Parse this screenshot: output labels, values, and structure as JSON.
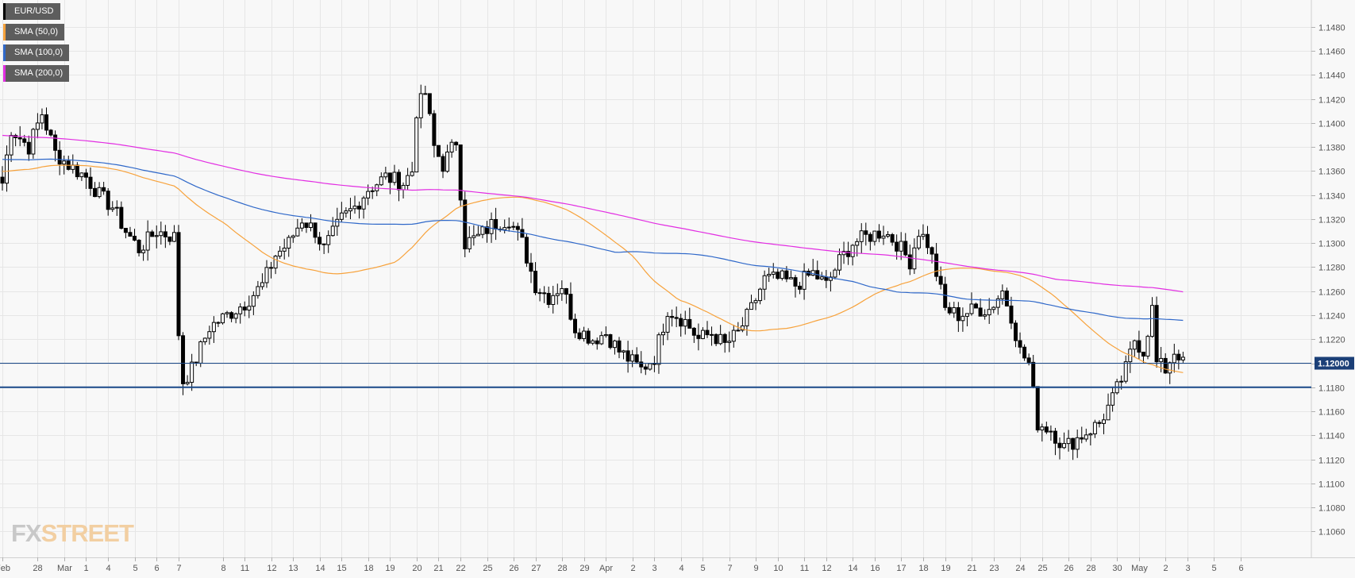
{
  "legend": [
    {
      "label": "EUR/USD",
      "color": "#000000"
    },
    {
      "label": "SMA (50,0)",
      "color": "#f7a23b"
    },
    {
      "label": "SMA (100,0)",
      "color": "#2f68c9"
    },
    {
      "label": "SMA (200,0)",
      "color": "#e22ee2"
    }
  ],
  "logo": {
    "part1": "FX",
    "part2": "STREET"
  },
  "chart_data": {
    "type": "candlestick",
    "symbol": "EUR/USD",
    "ylim": [
      1.1053,
      1.1497
    ],
    "y_ticks": [
      "1.1060",
      "1.1080",
      "1.1100",
      "1.1120",
      "1.1140",
      "1.1160",
      "1.1180",
      "1.1200",
      "1.1220",
      "1.1240",
      "1.1260",
      "1.1280",
      "1.1300",
      "1.1320",
      "1.1340",
      "1.1360",
      "1.1380",
      "1.1400",
      "1.1420",
      "1.1440",
      "1.1460",
      "1.1480"
    ],
    "x_ticks": [
      {
        "label": "Feb",
        "i": 0
      },
      {
        "label": "28",
        "i": 8
      },
      {
        "label": "Mar",
        "i": 14
      },
      {
        "label": "1",
        "i": 19
      },
      {
        "label": "4",
        "i": 24
      },
      {
        "label": "5",
        "i": 30
      },
      {
        "label": "6",
        "i": 35
      },
      {
        "label": "7",
        "i": 40
      },
      {
        "label": "8",
        "i": 50
      },
      {
        "label": "11",
        "i": 55
      },
      {
        "label": "12",
        "i": 61
      },
      {
        "label": "13",
        "i": 66
      },
      {
        "label": "14",
        "i": 72
      },
      {
        "label": "15",
        "i": 77
      },
      {
        "label": "18",
        "i": 83
      },
      {
        "label": "19",
        "i": 88
      },
      {
        "label": "20",
        "i": 94
      },
      {
        "label": "21",
        "i": 99
      },
      {
        "label": "22",
        "i": 104
      },
      {
        "label": "25",
        "i": 110
      },
      {
        "label": "26",
        "i": 116
      },
      {
        "label": "27",
        "i": 121
      },
      {
        "label": "28",
        "i": 127
      },
      {
        "label": "29",
        "i": 132
      },
      {
        "label": "Apr",
        "i": 137
      },
      {
        "label": "2",
        "i": 143
      },
      {
        "label": "3",
        "i": 148
      },
      {
        "label": "4",
        "i": 154
      },
      {
        "label": "5",
        "i": 159
      },
      {
        "label": "7",
        "i": 165
      },
      {
        "label": "9",
        "i": 171
      },
      {
        "label": "10",
        "i": 176
      },
      {
        "label": "11",
        "i": 182
      },
      {
        "label": "12",
        "i": 187
      },
      {
        "label": "14",
        "i": 193
      },
      {
        "label": "16",
        "i": 198
      },
      {
        "label": "17",
        "i": 204
      },
      {
        "label": "18",
        "i": 209
      },
      {
        "label": "19",
        "i": 214
      },
      {
        "label": "21",
        "i": 220
      },
      {
        "label": "23",
        "i": 225
      },
      {
        "label": "24",
        "i": 231
      },
      {
        "label": "25",
        "i": 236
      },
      {
        "label": "26",
        "i": 242
      },
      {
        "label": "28",
        "i": 247
      },
      {
        "label": "30",
        "i": 253
      },
      {
        "label": "May",
        "i": 258
      },
      {
        "label": "2",
        "i": 264
      },
      {
        "label": "3",
        "i": 269
      },
      {
        "label": "5",
        "i": 275
      },
      {
        "label": "6",
        "i": 281
      }
    ],
    "key_levels": [
      1.118
    ],
    "last_price": {
      "value": 1.12,
      "label": "1.12000"
    },
    "anchors": [
      [
        0,
        1.135
      ],
      [
        2,
        1.1395
      ],
      [
        6,
        1.138
      ],
      [
        9,
        1.1408
      ],
      [
        12,
        1.1375
      ],
      [
        15,
        1.1365
      ],
      [
        19,
        1.1355
      ],
      [
        22,
        1.134
      ],
      [
        25,
        1.133
      ],
      [
        28,
        1.131
      ],
      [
        31,
        1.1295
      ],
      [
        35,
        1.131
      ],
      [
        39,
        1.1305
      ],
      [
        40,
        1.1225
      ],
      [
        41,
        1.1185
      ],
      [
        43,
        1.1195
      ],
      [
        47,
        1.123
      ],
      [
        51,
        1.124
      ],
      [
        55,
        1.125
      ],
      [
        59,
        1.1265
      ],
      [
        62,
        1.129
      ],
      [
        65,
        1.13
      ],
      [
        68,
        1.132
      ],
      [
        71,
        1.131
      ],
      [
        73,
        1.1295
      ],
      [
        77,
        1.132
      ],
      [
        80,
        1.133
      ],
      [
        83,
        1.1345
      ],
      [
        87,
        1.1355
      ],
      [
        91,
        1.135
      ],
      [
        93,
        1.136
      ],
      [
        94,
        1.141
      ],
      [
        96,
        1.1425
      ],
      [
        98,
        1.138
      ],
      [
        100,
        1.1365
      ],
      [
        103,
        1.1385
      ],
      [
        105,
        1.13
      ],
      [
        108,
        1.1305
      ],
      [
        111,
        1.1315
      ],
      [
        115,
        1.132
      ],
      [
        118,
        1.13
      ],
      [
        121,
        1.1265
      ],
      [
        124,
        1.1255
      ],
      [
        127,
        1.1265
      ],
      [
        130,
        1.123
      ],
      [
        134,
        1.122
      ],
      [
        137,
        1.1225
      ],
      [
        140,
        1.121
      ],
      [
        145,
        1.1195
      ],
      [
        148,
        1.1205
      ],
      [
        151,
        1.1245
      ],
      [
        155,
        1.1235
      ],
      [
        158,
        1.122
      ],
      [
        161,
        1.1225
      ],
      [
        164,
        1.1215
      ],
      [
        167,
        1.1225
      ],
      [
        170,
        1.1245
      ],
      [
        173,
        1.127
      ],
      [
        177,
        1.127
      ],
      [
        180,
        1.1265
      ],
      [
        184,
        1.1275
      ],
      [
        187,
        1.1265
      ],
      [
        190,
        1.1285
      ],
      [
        193,
        1.13
      ],
      [
        196,
        1.1305
      ],
      [
        200,
        1.131
      ],
      [
        203,
        1.13
      ],
      [
        206,
        1.1285
      ],
      [
        208,
        1.131
      ],
      [
        210,
        1.13
      ],
      [
        212,
        1.1275
      ],
      [
        214,
        1.1245
      ],
      [
        217,
        1.124
      ],
      [
        221,
        1.1245
      ],
      [
        224,
        1.1245
      ],
      [
        227,
        1.126
      ],
      [
        229,
        1.124
      ],
      [
        231,
        1.121
      ],
      [
        233,
        1.12
      ],
      [
        235,
        1.115
      ],
      [
        238,
        1.1145
      ],
      [
        241,
        1.113
      ],
      [
        245,
        1.114
      ],
      [
        249,
        1.115
      ],
      [
        252,
        1.117
      ],
      [
        255,
        1.1195
      ],
      [
        257,
        1.122
      ],
      [
        259,
        1.121
      ],
      [
        261,
        1.1245
      ],
      [
        262,
        1.12
      ],
      [
        264,
        1.1195
      ],
      [
        266,
        1.121
      ],
      [
        268,
        1.1205
      ]
    ]
  }
}
